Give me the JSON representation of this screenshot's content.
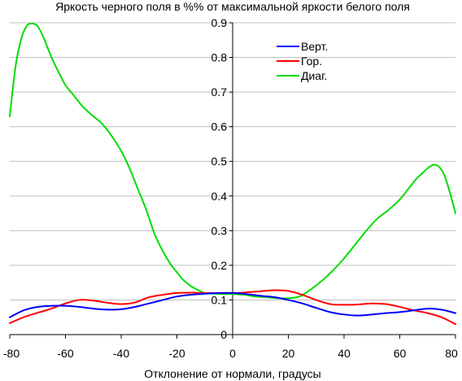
{
  "chart_data": {
    "type": "line",
    "title": "Яркость черного поля в %% от максимальной яркости белого поля",
    "xlabel": "Отклонение от нормали, градусы",
    "ylabel": "",
    "xlim": [
      -80,
      80
    ],
    "ylim": [
      0,
      0.9
    ],
    "x_ticks": [
      "-80",
      "-60",
      "-40",
      "-20",
      "0",
      "20",
      "40",
      "60",
      "80"
    ],
    "y_ticks": [
      "0",
      "0.1",
      "0.2",
      "0.3",
      "0.4",
      "0.5",
      "0.6",
      "0.7",
      "0.8",
      "0.9"
    ],
    "grid": "horizontal",
    "legend": "top-right",
    "series": [
      {
        "name": "Верт.",
        "color": "#0000ff",
        "x": [
          -80,
          -75,
          -70,
          -65,
          -60,
          -55,
          -50,
          -45,
          -40,
          -35,
          -30,
          -25,
          -20,
          -15,
          -10,
          -5,
          0,
          5,
          10,
          15,
          20,
          25,
          30,
          35,
          40,
          45,
          50,
          55,
          60,
          65,
          70,
          75,
          80
        ],
        "y": [
          0.05,
          0.07,
          0.08,
          0.083,
          0.083,
          0.08,
          0.075,
          0.072,
          0.073,
          0.08,
          0.09,
          0.1,
          0.11,
          0.115,
          0.118,
          0.12,
          0.12,
          0.117,
          0.112,
          0.108,
          0.1,
          0.09,
          0.077,
          0.065,
          0.058,
          0.055,
          0.058,
          0.062,
          0.065,
          0.07,
          0.075,
          0.072,
          0.062
        ]
      },
      {
        "name": "Гор.",
        "color": "#ff0000",
        "x": [
          -80,
          -75,
          -70,
          -65,
          -60,
          -55,
          -50,
          -45,
          -40,
          -35,
          -30,
          -25,
          -20,
          -15,
          -10,
          -5,
          0,
          5,
          10,
          15,
          20,
          25,
          30,
          35,
          40,
          45,
          50,
          55,
          60,
          65,
          70,
          75,
          80
        ],
        "y": [
          0.033,
          0.05,
          0.063,
          0.075,
          0.09,
          0.1,
          0.098,
          0.092,
          0.088,
          0.093,
          0.108,
          0.115,
          0.12,
          0.121,
          0.12,
          0.12,
          0.12,
          0.122,
          0.125,
          0.128,
          0.126,
          0.115,
          0.1,
          0.088,
          0.086,
          0.087,
          0.09,
          0.088,
          0.08,
          0.07,
          0.062,
          0.05,
          0.03
        ]
      },
      {
        "name": "Диаг.",
        "color": "#00dd00",
        "x": [
          -80,
          -78,
          -76,
          -74,
          -72,
          -70,
          -68,
          -65,
          -62,
          -60,
          -57,
          -54,
          -50,
          -47,
          -44,
          -40,
          -37,
          -34,
          -31,
          -28,
          -25,
          -22,
          -20,
          -18,
          -15,
          -12,
          -10,
          -7,
          -4,
          0,
          4,
          8,
          12,
          16,
          20,
          24,
          28,
          32,
          36,
          40,
          44,
          48,
          52,
          56,
          60,
          63,
          66,
          68,
          70,
          72,
          74,
          76,
          78,
          80
        ],
        "y": [
          0.63,
          0.77,
          0.85,
          0.89,
          0.898,
          0.89,
          0.86,
          0.8,
          0.75,
          0.72,
          0.69,
          0.66,
          0.63,
          0.61,
          0.58,
          0.53,
          0.48,
          0.42,
          0.36,
          0.29,
          0.24,
          0.2,
          0.18,
          0.16,
          0.14,
          0.127,
          0.12,
          0.118,
          0.117,
          0.117,
          0.115,
          0.11,
          0.108,
          0.105,
          0.105,
          0.11,
          0.13,
          0.155,
          0.185,
          0.22,
          0.26,
          0.3,
          0.335,
          0.36,
          0.39,
          0.42,
          0.45,
          0.465,
          0.48,
          0.49,
          0.485,
          0.46,
          0.41,
          0.35
        ]
      }
    ]
  }
}
